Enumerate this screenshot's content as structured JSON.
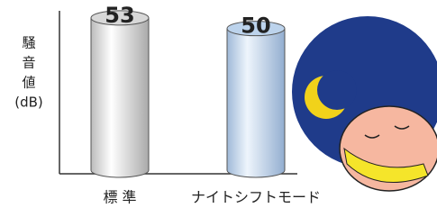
{
  "chart_data": {
    "type": "bar",
    "ylabel": [
      "騒",
      "音",
      "値",
      "(dB)"
    ],
    "categories": [
      "標 準",
      "ナイトシフトモード"
    ],
    "values": [
      53,
      50
    ],
    "colors": [
      "#d8d8d8",
      "#bcd3ec"
    ],
    "ylim": [
      9,
      55
    ]
  }
}
